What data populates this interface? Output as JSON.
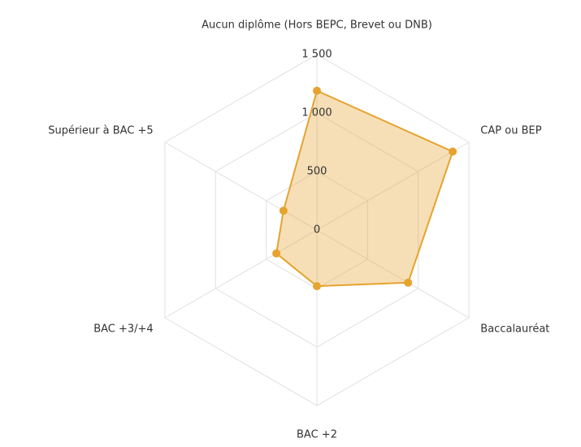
{
  "chart_data": {
    "type": "radar",
    "categories": [
      "Aucun diplôme (Hors BEPC, Brevet ou DNB)",
      "CAP ou BEP",
      "Baccalauréat",
      "BAC +2",
      "BAC +3/+4",
      "Supérieur à BAC +5"
    ],
    "values": [
      1190,
      1340,
      900,
      480,
      400,
      330
    ],
    "color": "#e6a32e",
    "ylim": [
      0,
      1500
    ],
    "yticks": [
      0,
      500,
      {
        "value": 1000,
        "label": "1 000"
      },
      {
        "value": 1500,
        "label": "1 500"
      }
    ],
    "grid": true
  }
}
